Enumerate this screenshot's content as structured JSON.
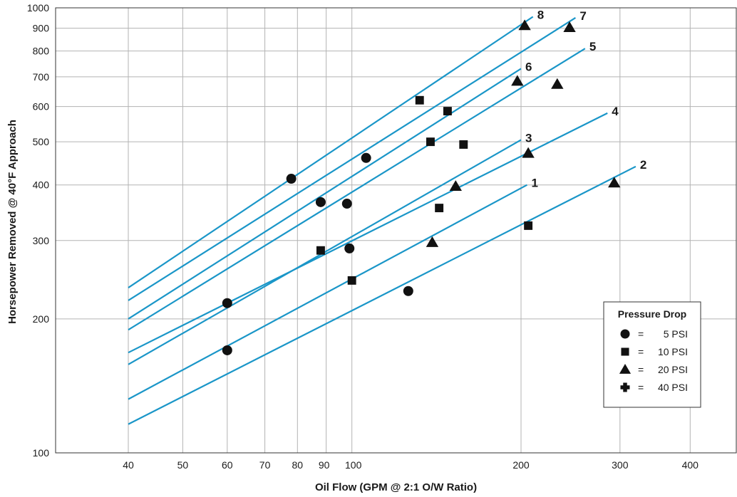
{
  "chart_data": {
    "type": "line",
    "title": "",
    "xlabel": "Oil Flow (GPM @ 2:1 O/W Ratio)",
    "ylabel": "Horsepower Removed @ 40°F Approach",
    "xscale": "log",
    "yscale": "log",
    "xlim": [
      40,
      500
    ],
    "ylim": [
      100,
      1000
    ],
    "grid": true,
    "x_ticks": [
      40,
      50,
      60,
      70,
      80,
      90,
      100,
      200,
      300,
      400
    ],
    "y_ticks": [
      100,
      200,
      300,
      400,
      500,
      600,
      700,
      800,
      900,
      1000
    ],
    "line_color": "#1a96c8",
    "series": [
      {
        "name": "1",
        "x_range": [
          40,
          205
        ],
        "y_range": [
          132,
          400
        ]
      },
      {
        "name": "2",
        "x_range": [
          40,
          320
        ],
        "y_range": [
          116,
          440
        ]
      },
      {
        "name": "3",
        "x_range": [
          40,
          200
        ],
        "y_range": [
          158,
          505
        ]
      },
      {
        "name": "4",
        "x_range": [
          40,
          285
        ],
        "y_range": [
          168,
          580
        ]
      },
      {
        "name": "5",
        "x_range": [
          40,
          260
        ],
        "y_range": [
          189,
          810
        ]
      },
      {
        "name": "6",
        "x_range": [
          40,
          200
        ],
        "y_range": [
          200,
          730
        ]
      },
      {
        "name": "7",
        "x_range": [
          40,
          250
        ],
        "y_range": [
          220,
          950
        ]
      },
      {
        "name": "8",
        "x_range": [
          40,
          210
        ],
        "y_range": [
          235,
          955
        ]
      }
    ],
    "markers": [
      {
        "shape": "circle",
        "x": 60,
        "y": 170
      },
      {
        "shape": "circle",
        "x": 60,
        "y": 217
      },
      {
        "shape": "circle",
        "x": 78,
        "y": 413
      },
      {
        "shape": "circle",
        "x": 88,
        "y": 366
      },
      {
        "shape": "circle",
        "x": 98,
        "y": 363
      },
      {
        "shape": "circle",
        "x": 99,
        "y": 288
      },
      {
        "shape": "circle",
        "x": 106,
        "y": 460
      },
      {
        "shape": "circle",
        "x": 126,
        "y": 231
      },
      {
        "shape": "square",
        "x": 88,
        "y": 285
      },
      {
        "shape": "square",
        "x": 100,
        "y": 244
      },
      {
        "shape": "square",
        "x": 132,
        "y": 620
      },
      {
        "shape": "square",
        "x": 138,
        "y": 500
      },
      {
        "shape": "square",
        "x": 143,
        "y": 355
      },
      {
        "shape": "square",
        "x": 148,
        "y": 586
      },
      {
        "shape": "square",
        "x": 158,
        "y": 493
      },
      {
        "shape": "square",
        "x": 206,
        "y": 324
      },
      {
        "shape": "triangle",
        "x": 139,
        "y": 297
      },
      {
        "shape": "triangle",
        "x": 153,
        "y": 397
      },
      {
        "shape": "triangle",
        "x": 197,
        "y": 684
      },
      {
        "shape": "triangle",
        "x": 203,
        "y": 912
      },
      {
        "shape": "triangle",
        "x": 206,
        "y": 471
      },
      {
        "shape": "triangle",
        "x": 232,
        "y": 673
      },
      {
        "shape": "triangle",
        "x": 244,
        "y": 903
      },
      {
        "shape": "triangle",
        "x": 293,
        "y": 404
      }
    ],
    "legend": {
      "title": "Pressure Drop",
      "placement": "bottom-right",
      "items": [
        {
          "shape": "circle",
          "eq": "=",
          "label": "5 PSI"
        },
        {
          "shape": "square",
          "eq": "=",
          "label": "10 PSI"
        },
        {
          "shape": "triangle",
          "eq": "=",
          "label": "20 PSI"
        },
        {
          "shape": "plus",
          "eq": "=",
          "label": "40 PSI"
        }
      ]
    }
  }
}
